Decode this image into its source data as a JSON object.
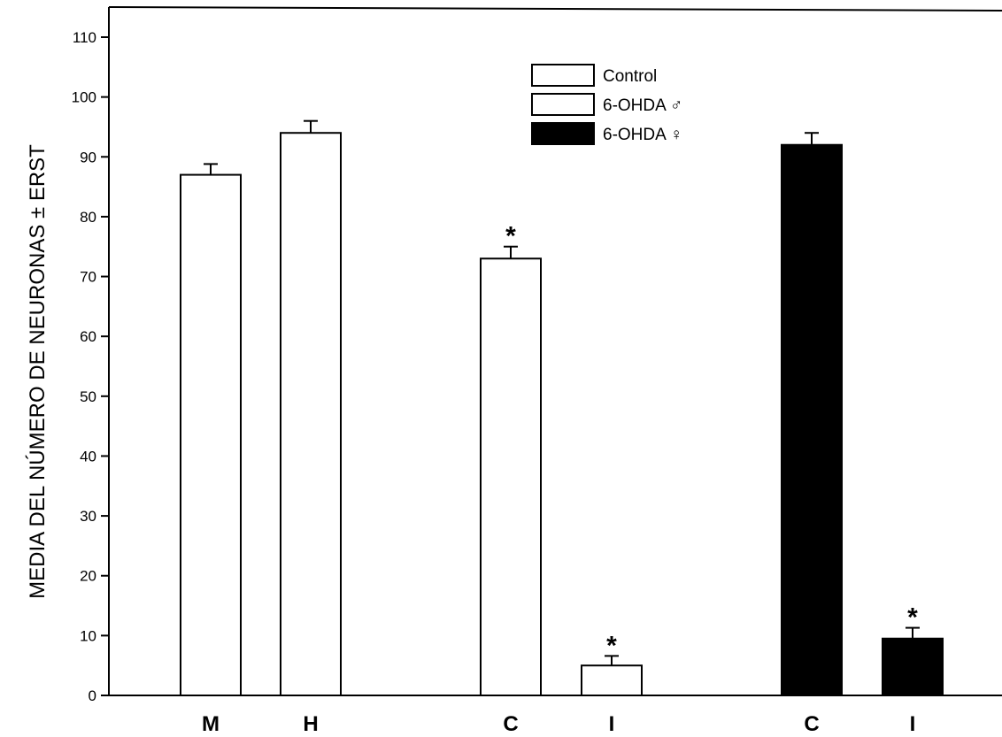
{
  "chart_data": {
    "type": "bar",
    "ylabel": "MEDIA DEL NÚMERO DE NEURONAS ± ERST",
    "xlabel": "",
    "ylim": [
      0,
      115
    ],
    "yticks": [
      0,
      10,
      20,
      30,
      40,
      50,
      60,
      70,
      80,
      90,
      100,
      110
    ],
    "grid": false,
    "legend_position": "top-center",
    "legend": [
      {
        "label": "Control",
        "fill": "#ffffff"
      },
      {
        "label": "6-OHDA ♂",
        "fill": "#ffffff"
      },
      {
        "label": "6-OHDA ♀",
        "fill": "#000000"
      }
    ],
    "bars": [
      {
        "category": "M",
        "series": 0,
        "value": 87,
        "error": 1.8,
        "marker": ""
      },
      {
        "category": "H",
        "series": 0,
        "value": 94,
        "error": 2.0,
        "marker": ""
      },
      {
        "category": "C",
        "series": 1,
        "value": 73,
        "error": 2.0,
        "marker": "*"
      },
      {
        "category": "I",
        "series": 1,
        "value": 5,
        "error": 1.6,
        "marker": "*"
      },
      {
        "category": "C",
        "series": 2,
        "value": 92,
        "error": 2.0,
        "marker": ""
      },
      {
        "category": "I",
        "series": 2,
        "value": 9.5,
        "error": 1.8,
        "marker": "*"
      }
    ],
    "colors": {
      "outline": "#000000",
      "background": "#ffffff"
    }
  }
}
